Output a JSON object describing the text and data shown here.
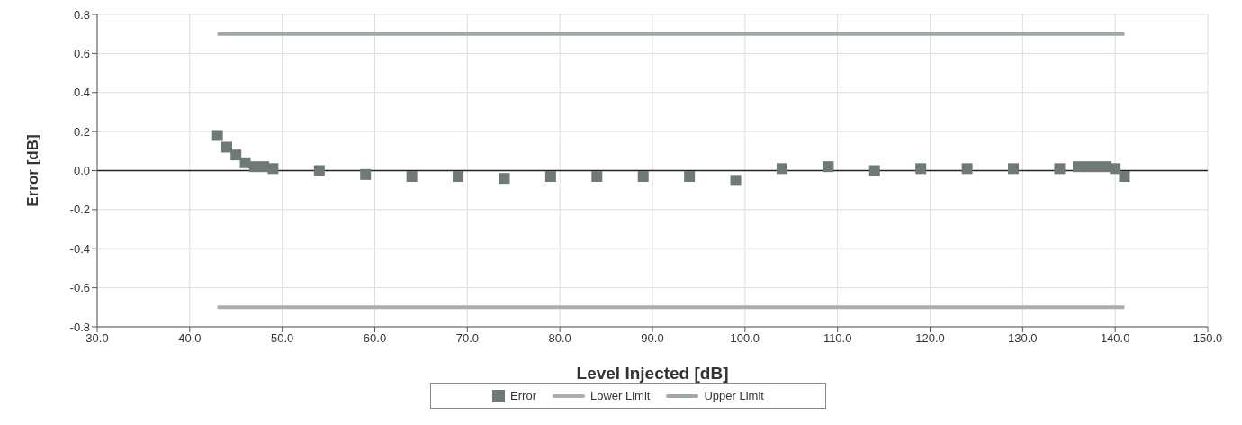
{
  "chart_data": {
    "type": "scatter",
    "xlabel": "Level Injected [dB]",
    "ylabel": "Error [dB]",
    "xlim": [
      30,
      150
    ],
    "ylim": [
      -0.8,
      0.8
    ],
    "xticks": [
      {
        "value": 30,
        "label": "30.0"
      },
      {
        "value": 40,
        "label": "40.0"
      },
      {
        "value": 50,
        "label": "50.0"
      },
      {
        "value": 60,
        "label": "60.0"
      },
      {
        "value": 70,
        "label": "70.0"
      },
      {
        "value": 80,
        "label": "80.0"
      },
      {
        "value": 90,
        "label": "90.0"
      },
      {
        "value": 100,
        "label": "100.0"
      },
      {
        "value": 110,
        "label": "110.0"
      },
      {
        "value": 120,
        "label": "120.0"
      },
      {
        "value": 130,
        "label": "130.0"
      },
      {
        "value": 140,
        "label": "140.0"
      },
      {
        "value": 150,
        "label": "150.0"
      }
    ],
    "yticks": [
      -0.8,
      -0.6,
      -0.4,
      -0.2,
      {
        "value": 0,
        "label": "0.0"
      },
      0.2,
      0.4,
      0.6,
      0.8
    ],
    "grid": true,
    "legend": "bottom",
    "marker": "square",
    "ref_lines": [
      {
        "axis": "y",
        "value": 0,
        "color": "#222222"
      }
    ],
    "series": [
      {
        "name": "Error",
        "color": "#6f7a76",
        "x": [
          43,
          44,
          45,
          46,
          47,
          48,
          49,
          54,
          59,
          64,
          69,
          74,
          79,
          84,
          89,
          94,
          99,
          104,
          109,
          114,
          119,
          124,
          129,
          134,
          136,
          137,
          138,
          139,
          140,
          141
        ],
        "values": [
          0.18,
          0.12,
          0.08,
          0.04,
          0.02,
          0.02,
          0.01,
          0.0,
          -0.02,
          -0.03,
          -0.03,
          -0.04,
          -0.03,
          -0.03,
          -0.03,
          -0.03,
          -0.05,
          0.01,
          0.02,
          0.0,
          0.01,
          0.01,
          0.01,
          0.01,
          0.02,
          0.02,
          0.02,
          0.02,
          0.01,
          -0.03
        ]
      },
      {
        "name": "Lower Limit",
        "type": "line",
        "color": "#a9aeac",
        "x": [
          43,
          141
        ],
        "values": [
          -0.7,
          -0.7
        ],
        "marker": "none"
      },
      {
        "name": "Upper Limit",
        "type": "line",
        "color": "#a0a8a6",
        "x": [
          43,
          141
        ],
        "values": [
          0.7,
          0.7
        ],
        "marker": "none"
      }
    ]
  }
}
